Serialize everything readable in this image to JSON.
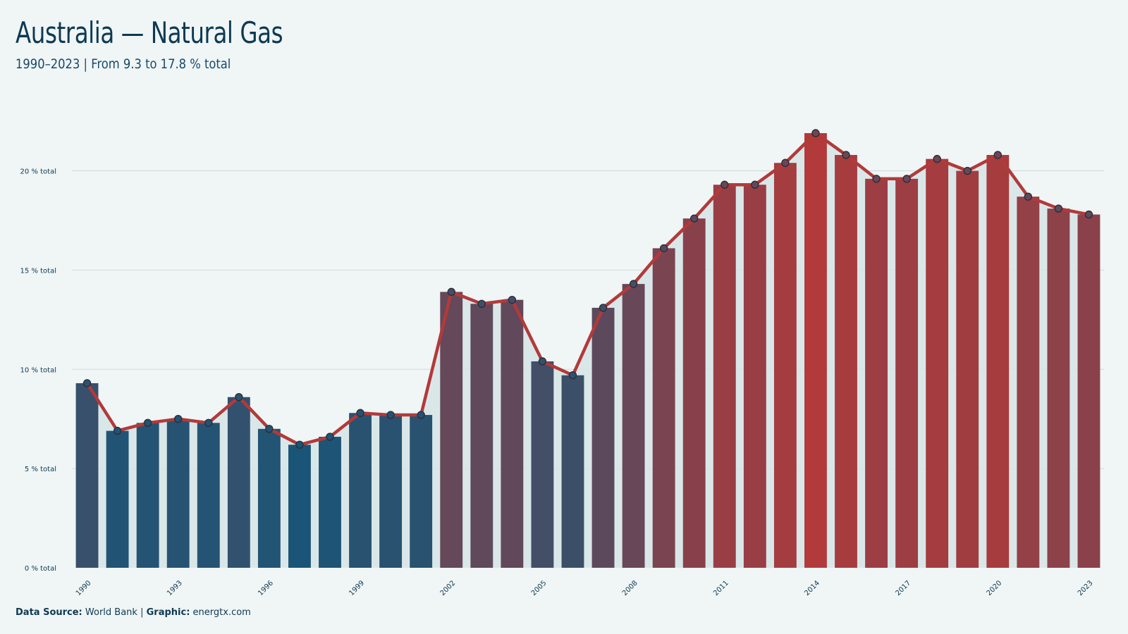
{
  "header": {
    "title": "Australia — Natural Gas",
    "subtitle": "1990–2023 | From 9.3 to 17.8 % total"
  },
  "footer": {
    "source_label": "Data Source:",
    "source_value": "World Bank",
    "separator": "|",
    "graphic_label": "Graphic:",
    "graphic_value": "energtx.com"
  },
  "colors": {
    "background": "#f0f5f5",
    "low": "#1a5577",
    "high": "#b23a3a",
    "line": "#b23a3a",
    "area": "#d5e3e6",
    "grid": "#cfdcdc"
  },
  "chart_data": {
    "type": "bar",
    "title": "Australia — Natural Gas",
    "subtitle": "1990–2023 | From 9.3 to 17.8 % total",
    "xlabel": "",
    "ylabel": "",
    "unit": "% total",
    "ylim": [
      0,
      23
    ],
    "yticks": [
      0,
      5,
      10,
      15,
      20
    ],
    "ytick_labels": [
      "0 % total",
      "5 % total",
      "10 % total",
      "15 % total",
      "20 % total"
    ],
    "xtick_labels": [
      "1990",
      "1993",
      "1996",
      "1999",
      "2002",
      "2005",
      "2008",
      "2011",
      "2014",
      "2017",
      "2020",
      "2023"
    ],
    "grid": true,
    "categories": [
      "1990",
      "1991",
      "1992",
      "1993",
      "1994",
      "1995",
      "1996",
      "1997",
      "1998",
      "1999",
      "2000",
      "2001",
      "2002",
      "2003",
      "2004",
      "2005",
      "2006",
      "2007",
      "2008",
      "2009",
      "2010",
      "2011",
      "2012",
      "2013",
      "2014",
      "2015",
      "2016",
      "2017",
      "2018",
      "2019",
      "2020",
      "2021",
      "2022",
      "2023"
    ],
    "values": [
      9.3,
      6.9,
      7.3,
      7.5,
      7.3,
      8.6,
      7.0,
      6.2,
      6.6,
      7.8,
      7.7,
      7.7,
      13.9,
      13.3,
      13.5,
      10.4,
      9.7,
      13.1,
      14.3,
      16.1,
      17.6,
      19.3,
      19.3,
      20.4,
      21.9,
      20.8,
      19.6,
      19.6,
      20.6,
      20.0,
      20.8,
      18.7,
      18.1,
      17.8
    ]
  }
}
